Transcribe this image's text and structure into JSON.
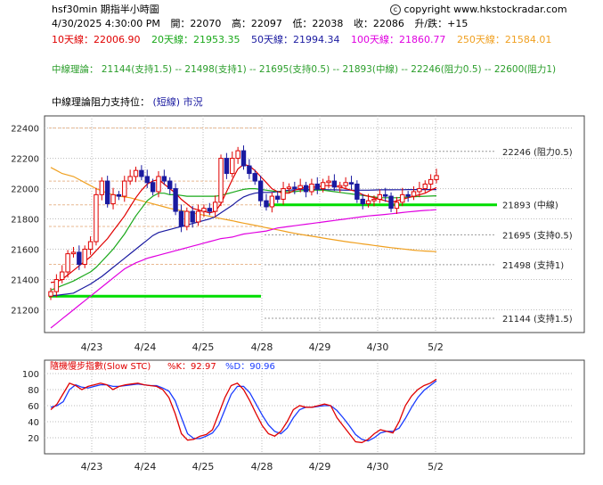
{
  "header": {
    "title": "hsf30min  期指半小時圖",
    "datetime": "4/30/2025 4:30:00 PM",
    "open_label": "開：22070",
    "high_label": "高：22097",
    "low_label": "低：22038",
    "close_label": "收：22086",
    "change_label": "升/跌：+15",
    "copyright": "copyright www.hkstockradar.com",
    "ma10": "10天線：22006.90",
    "ma20": "20天線：21953.35",
    "ma50": "50天線：21994.34",
    "ma100": "100天線：21860.77",
    "ma250": "250天線：21584.01",
    "theory_line": "中線理論： 21144(支持1.5) -- 21498(支持1) -- 21695(支持0.5) -- 21893(中線) -- 22246(阻力0.5) -- 22600(阻力1)",
    "support_title": "中線理論阻力支持位：",
    "support_sub": "(短線) 市況",
    "colors": {
      "ma10": "#e00000",
      "ma20": "#1aa81a",
      "ma50": "#1a1aa0",
      "ma100": "#e000e0",
      "ma250": "#f0a020",
      "theory": "#2b9e2b",
      "stc_k": "#e00000",
      "stc_d": "#1a3cff"
    }
  },
  "chart_data": [
    {
      "type": "candlestick",
      "ylim": [
        21050,
        22480
      ],
      "yticks": [
        21200,
        21400,
        21600,
        21800,
        22000,
        22200,
        22400
      ],
      "xlabels": [
        "4/23",
        "4/24",
        "4/25",
        "4/28",
        "4/29",
        "4/30",
        "5/2"
      ],
      "levels": [
        {
          "value": 22246,
          "label": "22246 (阻力0.5)"
        },
        {
          "value": 21893,
          "label": "21893 (中線)"
        },
        {
          "value": 21695,
          "label": "21695 (支持0.5)"
        },
        {
          "value": 21498,
          "label": "21498 (支持1)"
        },
        {
          "value": 21144,
          "label": "21144 (支持1.5)"
        }
      ],
      "previous_levels": [
        22400,
        22050,
        21893,
        21750,
        21500,
        21290
      ],
      "candle_close": [
        21320,
        21400,
        21450,
        21570,
        21580,
        21500,
        21600,
        21650,
        21960,
        22050,
        21900,
        21960,
        21950,
        22050,
        22080,
        22120,
        22080,
        22040,
        21980,
        22080,
        22050,
        22000,
        21850,
        21750,
        21850,
        21780,
        21850,
        21870,
        21850,
        21910,
        22200,
        22100,
        22200,
        22250,
        22150,
        22100,
        22050,
        21920,
        21880,
        21950,
        21930,
        22000,
        22010,
        22000,
        22020,
        21980,
        22030,
        22000,
        22040,
        22050,
        22010,
        22020,
        22040,
        22030,
        21930,
        21900,
        21920,
        21930,
        21960,
        21950,
        21870,
        21910,
        21960,
        21950,
        21980,
        22000,
        22030,
        22060,
        22086
      ],
      "ma10": [
        21380,
        21385,
        21400,
        21430,
        21460,
        21490,
        21520,
        21550,
        21590,
        21630,
        21670,
        21720,
        21770,
        21820,
        21880,
        21940,
        21990,
        22030,
        22050,
        22060,
        22030,
        22000,
        21970,
        21930,
        21900,
        21870,
        21860,
        21850,
        21840,
        21850,
        21900,
        21980,
        22060,
        22130,
        22160,
        22150,
        22120,
        22080,
        22040,
        22000,
        21980,
        21970,
        21970,
        21990,
        22000,
        22010,
        22010,
        22010,
        22020,
        22020,
        22020,
        22010,
        22000,
        21990,
        21980,
        21960,
        21950,
        21940,
        21930,
        21920,
        21910,
        21920,
        21930,
        21940,
        21950,
        21960,
        21970,
        21990,
        22007
      ],
      "ma20": [
        21330,
        21345,
        21360,
        21375,
        21390,
        21410,
        21430,
        21450,
        21480,
        21520,
        21560,
        21600,
        21650,
        21700,
        21760,
        21820,
        21870,
        21920,
        21950,
        21970,
        21970,
        21960,
        21960,
        21955,
        21950,
        21950,
        21950,
        21950,
        21950,
        21950,
        21955,
        21965,
        21975,
        21985,
        21995,
        22000,
        22000,
        21995,
        21990,
        21985,
        21980,
        21980,
        21980,
        21980,
        21985,
        21990,
        21990,
        21990,
        21990,
        21985,
        21980,
        21975,
        21970,
        21965,
        21960,
        21955,
        21950,
        21945,
        21940,
        21940,
        21940,
        21940,
        21942,
        21944,
        21946,
        21948,
        21950,
        21951,
        21953
      ],
      "ma50": [
        21290,
        21295,
        21300,
        21305,
        21310,
        21330,
        21350,
        21370,
        21395,
        21420,
        21450,
        21480,
        21510,
        21540,
        21570,
        21600,
        21630,
        21660,
        21690,
        21710,
        21720,
        21730,
        21740,
        21750,
        21760,
        21770,
        21780,
        21790,
        21800,
        21815,
        21840,
        21865,
        21890,
        21920,
        21945,
        21960,
        21970,
        21975,
        21975,
        21975,
        21980,
        21985,
        21990,
        21992,
        21995,
        21996,
        21996,
        21995,
        21994,
        21993,
        21992,
        21991,
        21990,
        21990,
        21990,
        21990,
        21990,
        21991,
        21992,
        21992,
        21992,
        21993,
        21993,
        21994,
        21994,
        21994,
        21994,
        21994,
        21994
      ],
      "ma100": [
        21080,
        21110,
        21140,
        21170,
        21200,
        21230,
        21260,
        21290,
        21320,
        21350,
        21380,
        21410,
        21440,
        21470,
        21490,
        21510,
        21525,
        21540,
        21550,
        21560,
        21570,
        21580,
        21590,
        21600,
        21610,
        21620,
        21630,
        21640,
        21650,
        21660,
        21670,
        21675,
        21680,
        21690,
        21700,
        21705,
        21710,
        21715,
        21720,
        21730,
        21740,
        21745,
        21750,
        21755,
        21760,
        21765,
        21770,
        21775,
        21780,
        21785,
        21790,
        21795,
        21800,
        21805,
        21810,
        21815,
        21820,
        21823,
        21826,
        21830,
        21834,
        21838,
        21842,
        21846,
        21850,
        21853,
        21856,
        21858,
        21861
      ],
      "ma250": [
        22140,
        22120,
        22100,
        22090,
        22080,
        22060,
        22040,
        22020,
        22000,
        21985,
        21970,
        21960,
        21950,
        21945,
        21940,
        21930,
        21920,
        21910,
        21900,
        21890,
        21880,
        21870,
        21862,
        21855,
        21848,
        21840,
        21832,
        21825,
        21818,
        21810,
        21802,
        21795,
        21788,
        21780,
        21772,
        21765,
        21758,
        21750,
        21742,
        21735,
        21728,
        21720,
        21712,
        21705,
        21698,
        21692,
        21686,
        21680,
        21674,
        21668,
        21662,
        21656,
        21650,
        21645,
        21640,
        21635,
        21630,
        21625,
        21620,
        21615,
        21610,
        21606,
        21602,
        21598,
        21594,
        21590,
        21588,
        21586,
        21584
      ]
    },
    {
      "type": "line",
      "title": "隨機慢步指數(Slow STC)",
      "k_label": "%K：92.97",
      "d_label": "%D：90.96",
      "ylim": [
        0,
        100
      ],
      "yticks": [
        20,
        40,
        60,
        80,
        100
      ],
      "xlabels": [
        "4/23",
        "4/24",
        "4/25",
        "4/28",
        "4/29",
        "4/30",
        "5/2"
      ],
      "series": [
        {
          "name": "%K",
          "values": [
            55,
            62,
            75,
            88,
            85,
            80,
            84,
            86,
            88,
            86,
            80,
            84,
            86,
            87,
            88,
            86,
            85,
            84,
            80,
            70,
            50,
            25,
            17,
            18,
            22,
            24,
            30,
            50,
            70,
            85,
            88,
            80,
            66,
            50,
            35,
            25,
            22,
            28,
            40,
            55,
            60,
            58,
            58,
            60,
            62,
            60,
            45,
            35,
            25,
            15,
            14,
            18,
            25,
            30,
            28,
            26,
            40,
            60,
            72,
            80,
            85,
            88,
            93
          ]
        },
        {
          "name": "%D",
          "values": [
            58,
            60,
            65,
            80,
            86,
            83,
            82,
            84,
            86,
            86,
            84,
            84,
            85,
            86,
            87,
            86,
            85,
            85,
            82,
            78,
            66,
            45,
            25,
            19,
            19,
            22,
            26,
            36,
            55,
            74,
            84,
            84,
            76,
            62,
            48,
            36,
            28,
            25,
            32,
            45,
            55,
            58,
            58,
            59,
            60,
            60,
            54,
            45,
            35,
            24,
            18,
            16,
            20,
            26,
            28,
            28,
            32,
            44,
            58,
            70,
            79,
            85,
            91
          ]
        }
      ]
    }
  ]
}
